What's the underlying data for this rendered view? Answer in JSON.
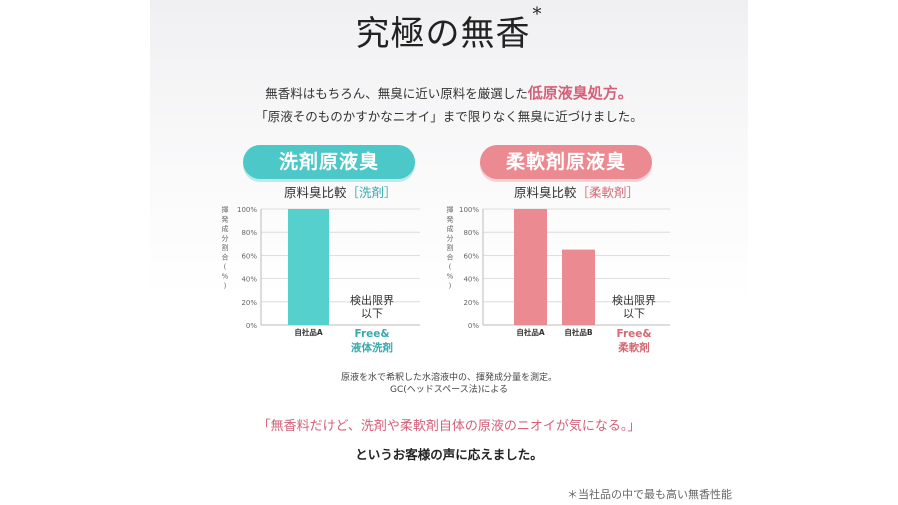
{
  "title": "究極の無香",
  "title_mark": "*",
  "intro": {
    "line1_prefix": "無香料はもちろん、無臭に近い原料を厳選した",
    "line1_highlight": "低原液臭処方。",
    "line2": "「原液そのものかすかなニオイ」まで限りなく無臭に近づけました。"
  },
  "pill_left": "洗剤原液臭",
  "pill_right": "柔軟剤原液臭",
  "chart_data": [
    {
      "type": "bar",
      "title_prefix": "原料臭比較",
      "title_tag": "［洗剤］",
      "ylabel": "揮発成分割合(%)",
      "yticks": [
        "100%",
        "80%",
        "60%",
        "40%",
        "20%",
        "0%"
      ],
      "ylim": [
        0,
        100
      ],
      "categories": [
        "自社品A"
      ],
      "values": [
        100
      ],
      "color": "#55d0cc",
      "annotation": [
        "検出限界",
        "以下"
      ],
      "comparison_label": [
        "Free&",
        "液体洗剤"
      ],
      "comparison_color": "#3aa9ad"
    },
    {
      "type": "bar",
      "title_prefix": "原料臭比較",
      "title_tag": "［柔軟剤］",
      "ylabel": "揮発成分割合(%)",
      "yticks": [
        "100%",
        "80%",
        "60%",
        "40%",
        "20%",
        "0%"
      ],
      "ylim": [
        0,
        100
      ],
      "categories": [
        "自社品A",
        "自社品B"
      ],
      "values": [
        100,
        65
      ],
      "color": "#ec8a92",
      "annotation": [
        "検出限界",
        "以下"
      ],
      "comparison_label": [
        "Free&",
        "柔軟剤"
      ],
      "comparison_color": "#d46a72"
    }
  ],
  "note": {
    "line1": "原液を水で希釈した水溶液中の、揮発成分量を測定。",
    "line2": "GC(ヘッドスペース法)による"
  },
  "quote": "「無香料だけど、洗剤や柔軟剤自体の原液のニオイが気になる。」",
  "answer": "というお客様の声に応えました。",
  "footnote": "＊当社品の中で最も高い無香性能"
}
